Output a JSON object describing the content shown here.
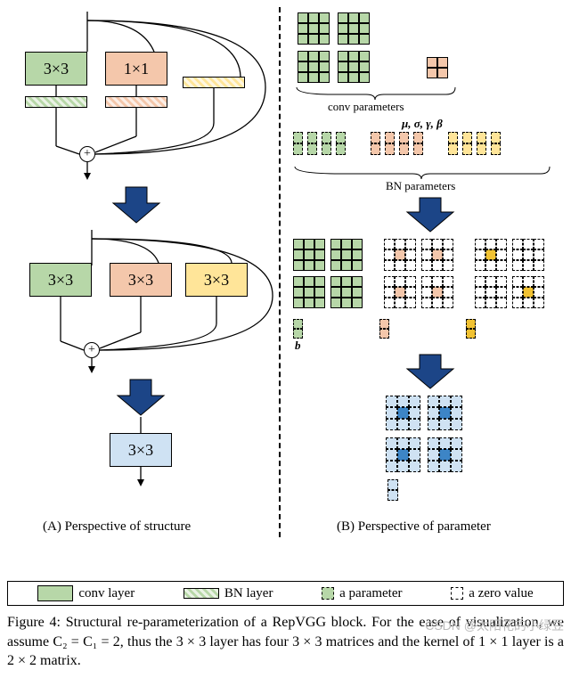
{
  "colors": {
    "green": "#b7d7a8",
    "green_dark": "#93c47d",
    "peach": "#f4c7ab",
    "peach_dark": "#e6a57e",
    "yellow": "#ffe599",
    "yellow_dark": "#f1c232",
    "blue": "#cfe2f3",
    "blue_dark": "#6fa8dc",
    "blue_solid": "#3d85c6",
    "arrow": "#1c4587",
    "white": "#ffffff"
  },
  "panel_a": {
    "caption": "(A) Perspective of structure",
    "top": {
      "conv_labels": [
        "3×3",
        "1×1"
      ],
      "branch_colors": [
        "green",
        "peach",
        "yellow"
      ]
    },
    "mid": {
      "conv_labels": [
        "3×3",
        "3×3",
        "3×3"
      ],
      "branch_colors": [
        "green",
        "peach",
        "yellow"
      ]
    },
    "bottom": {
      "label": "3×3",
      "color": "blue"
    }
  },
  "panel_b": {
    "caption": "(B) Perspective of parameter",
    "conv_param_label": "conv parameters",
    "bn_param_label": "BN parameters",
    "bn_symbols": "μ,  σ,  γ,  β",
    "b_label": "b",
    "grids": {
      "conv_green_3x3_count": 4,
      "conv_peach_2x2": true,
      "bn_row_colors": [
        "green",
        "peach",
        "yellow"
      ]
    }
  },
  "legend": {
    "conv": "conv layer",
    "bn": "BN layer",
    "param": "a parameter",
    "zero": "a zero value"
  },
  "caption": {
    "head": "Figure 4:",
    "body": "  Structural re-parameterization of a RepVGG block. For the ease of visualization, we assume C₂ = C₁ = 2, thus the 3 × 3 layer has four 3 × 3 matrices and the kernel of 1 × 1 layer is a 2 × 2 matrix."
  },
  "watermark": "CSDN @太阳花的小绿豆"
}
